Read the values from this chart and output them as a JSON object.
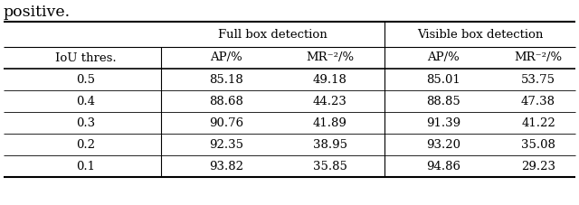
{
  "caption_text": "positive.",
  "group_headers": [
    "Full box detection",
    "Visible box detection"
  ],
  "col_headers": [
    "IoU thres.",
    "AP/%",
    "MR⁻²/%",
    "AP/%",
    "MR⁻²/%"
  ],
  "rows": [
    [
      "0.5",
      "85.18",
      "49.18",
      "85.01",
      "53.75"
    ],
    [
      "0.4",
      "88.68",
      "44.23",
      "88.85",
      "47.38"
    ],
    [
      "0.3",
      "90.76",
      "41.89",
      "91.39",
      "41.22"
    ],
    [
      "0.2",
      "92.35",
      "38.95",
      "93.20",
      "35.08"
    ],
    [
      "0.1",
      "93.82",
      "35.85",
      "94.86",
      "29.23"
    ]
  ],
  "bg_color": "#ffffff",
  "text_color": "#000000",
  "font_size": 9.5,
  "caption_font_size": 12.5,
  "fig_width": 6.4,
  "fig_height": 2.27,
  "dpi": 100
}
